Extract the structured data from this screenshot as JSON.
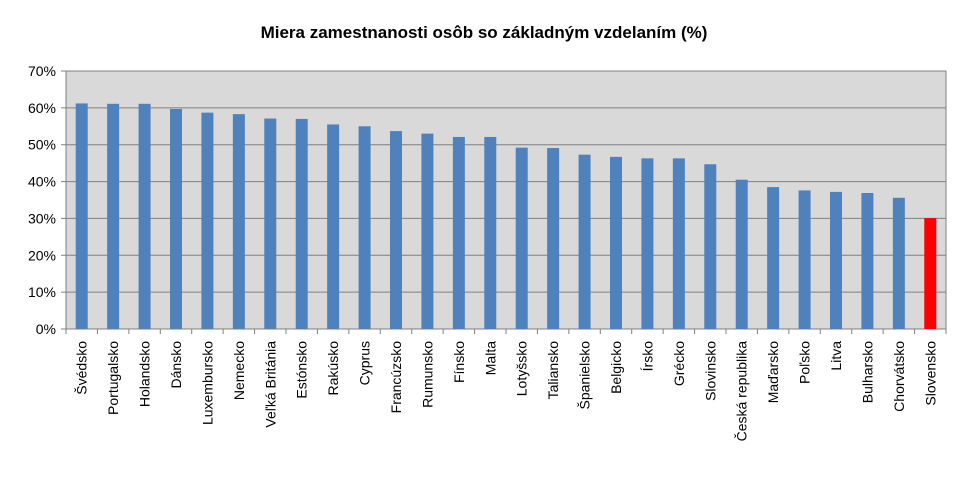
{
  "chart_data": {
    "type": "bar",
    "title": "Miera zamestnanosti osôb so základným vzdelaním (%)",
    "xlabel": "",
    "ylabel": "",
    "ylim": [
      0,
      70
    ],
    "yticks": [
      "0%",
      "10%",
      "20%",
      "30%",
      "40%",
      "50%",
      "60%",
      "70%"
    ],
    "grid": true,
    "legend": "none",
    "categories": [
      "Švédsko",
      "Portugalsko",
      "Holandsko",
      "Dánsko",
      "Luxembursko",
      "Nemecko",
      "Veľká Británia",
      "Estónsko",
      "Rakúsko",
      "Cyprus",
      "Francúzsko",
      "Rumunsko",
      "Fínsko",
      "Malta",
      "Lotyšsko",
      "Taliansko",
      "Španielsko",
      "Belgicko",
      "Írsko",
      "Grécko",
      "Slovinsko",
      "Česká republika",
      "Maďarsko",
      "Poľsko",
      "Litva",
      "Bulharsko",
      "Chorvátsko",
      "Slovensko"
    ],
    "values": [
      61.2,
      61.1,
      61.1,
      59.7,
      58.7,
      58.3,
      57.1,
      57.0,
      55.5,
      55.0,
      53.7,
      53.0,
      52.1,
      52.1,
      49.2,
      49.1,
      47.3,
      46.7,
      46.3,
      46.3,
      44.7,
      40.5,
      38.5,
      37.6,
      37.2,
      36.9,
      35.6,
      30.1
    ],
    "colors": {
      "default": "#4f81bd",
      "highlight": "#ff0000",
      "plot_bg": "#d9d9d9"
    },
    "highlight_category": "Slovensko"
  }
}
